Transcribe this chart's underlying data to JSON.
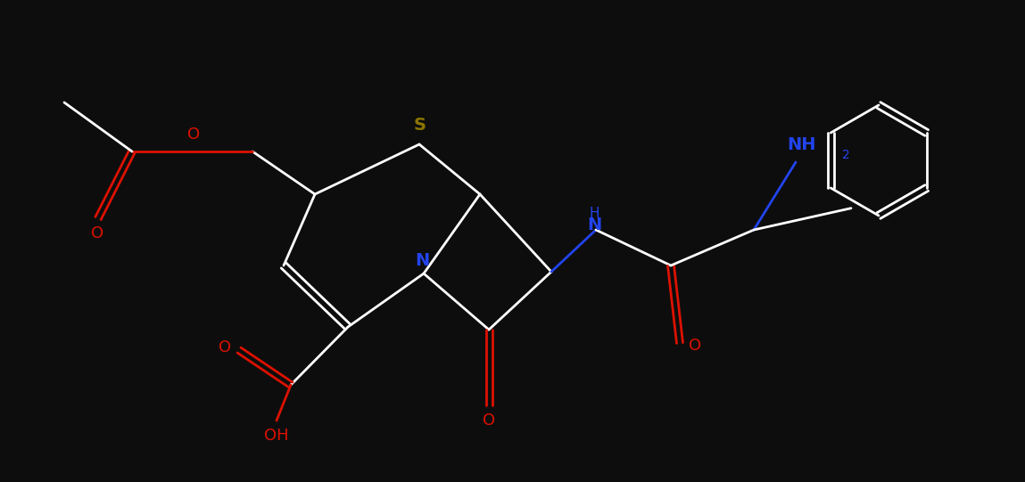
{
  "bg_color": "#0d0d0d",
  "bond_color": "#ffffff",
  "bond_width": 2.0,
  "red_color": "#dd1100",
  "blue_color": "#2244ee",
  "gold_color": "#8B7500",
  "figsize": [
    11.49,
    5.41
  ],
  "dpi": 100,
  "S_label": "S",
  "N_label": "N",
  "NH_label": "NH",
  "NH2_label": "NH",
  "NH2_sub": "2",
  "O_label": "O",
  "OH_label": "OH"
}
